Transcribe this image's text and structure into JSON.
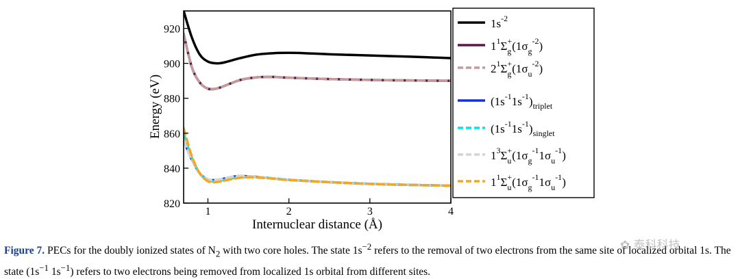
{
  "chart_data": {
    "type": "line",
    "xlabel": "Internuclear distance (Å)",
    "ylabel": "Energy (eV)",
    "xlim": [
      0.7,
      4.0
    ],
    "ylim": [
      820,
      930
    ],
    "x_ticks": [
      1,
      2,
      3,
      4
    ],
    "y_ticks": [
      820,
      840,
      860,
      880,
      900,
      920
    ],
    "grid": false,
    "legend_position": "right",
    "series": [
      {
        "name": "1s-2",
        "color": "#000000",
        "dash": "solid",
        "x": [
          0.7,
          0.8,
          0.9,
          1.0,
          1.1,
          1.2,
          1.4,
          1.6,
          1.8,
          2.0,
          2.2,
          2.5,
          3.0,
          3.5,
          4.0
        ],
        "y": [
          930,
          915,
          905,
          901,
          900,
          900.5,
          903,
          905,
          905.8,
          906,
          905.8,
          905.2,
          904.5,
          903.8,
          903
        ]
      },
      {
        "name": "1 1Σg+(1σg-2)",
        "color": "#5a1845",
        "dash": "solid",
        "x": [
          0.7,
          0.8,
          0.9,
          1.0,
          1.1,
          1.2,
          1.4,
          1.6,
          1.8,
          2.0,
          2.5,
          3.0,
          3.5,
          4.0
        ],
        "y": [
          917,
          898,
          889,
          885.5,
          885.5,
          887,
          890.5,
          892,
          892.2,
          891.8,
          891,
          890.5,
          890.2,
          890
        ]
      },
      {
        "name": "2 1Σg+(1σu-2)",
        "color": "#c49a9a",
        "dash": "dashed",
        "x": [
          0.7,
          0.8,
          0.9,
          1.0,
          1.1,
          1.2,
          1.4,
          1.6,
          1.8,
          2.0,
          2.5,
          3.0,
          3.5,
          4.0
        ],
        "y": [
          917,
          898,
          889,
          885.5,
          885.5,
          887,
          890.5,
          892,
          892.2,
          891.8,
          891,
          890.5,
          890.2,
          890
        ]
      },
      {
        "name": "(1s-1 1s-1)triplet",
        "color": "#1030e0",
        "dash": "solid",
        "x": [
          0.7,
          0.8,
          0.9,
          1.0,
          1.1,
          1.2,
          1.3,
          1.4,
          1.5,
          1.6,
          1.8,
          2.0,
          2.5,
          3.0,
          3.5,
          4.0
        ],
        "y": [
          856,
          845,
          837,
          833.5,
          833.2,
          834,
          835,
          835.5,
          835.3,
          835,
          834.2,
          833.3,
          832,
          831,
          830.4,
          830
        ]
      },
      {
        "name": "(1s-1 1s-1)singlet",
        "color": "#00e5ee",
        "dash": "dashed",
        "x": [
          0.7,
          0.8,
          0.9,
          1.0,
          1.1,
          1.2,
          1.3,
          1.4,
          1.5,
          1.6,
          1.8,
          2.0,
          2.5,
          3.0,
          3.5,
          4.0
        ],
        "y": [
          860,
          846,
          837,
          833,
          832.5,
          833.2,
          834.2,
          834.8,
          835,
          834.9,
          834.2,
          833.3,
          832,
          831,
          830.4,
          830
        ]
      },
      {
        "name": "1 3Σu+(1σg-1 1σu-1)",
        "color": "#d4d4d4",
        "dash": "dashed",
        "x": [
          0.7,
          0.8,
          0.9,
          1.0,
          1.1,
          1.2,
          1.3,
          1.4,
          1.5,
          1.6,
          1.8,
          2.0,
          2.5,
          3.0,
          3.5,
          4.0
        ],
        "y": [
          856,
          845,
          837,
          833.5,
          833.2,
          834,
          835,
          835.5,
          835.3,
          835,
          834.2,
          833.3,
          832,
          831,
          830.4,
          830
        ]
      },
      {
        "name": "1 1Σu+(1σg-1 1σu-1)",
        "color": "#f5a623",
        "dash": "dashed",
        "x": [
          0.7,
          0.8,
          0.9,
          1.0,
          1.1,
          1.2,
          1.3,
          1.4,
          1.5,
          1.6,
          1.8,
          2.0,
          2.5,
          3.0,
          3.5,
          4.0
        ],
        "y": [
          863,
          847,
          837,
          832.5,
          832,
          832.8,
          833.8,
          834.5,
          834.8,
          834.7,
          834,
          833.2,
          832,
          831,
          830.4,
          830
        ]
      }
    ]
  },
  "caption": {
    "label": "Figure 7.",
    "part1": " PECs for the doubly ionized states of N",
    "sub_2": "2",
    "part2": " with two core holes. The state 1s",
    "sup_m2": "−2",
    "part3": " refers to the removal of two electrons from the same site of localized orbital 1s. The state (1s",
    "sup_m1a": "−1",
    "part4": " 1s",
    "sup_m1b": "−1",
    "part5": ") refers to two electrons being removed from localized 1s orbital from different sites."
  },
  "watermark": "泰科科技"
}
